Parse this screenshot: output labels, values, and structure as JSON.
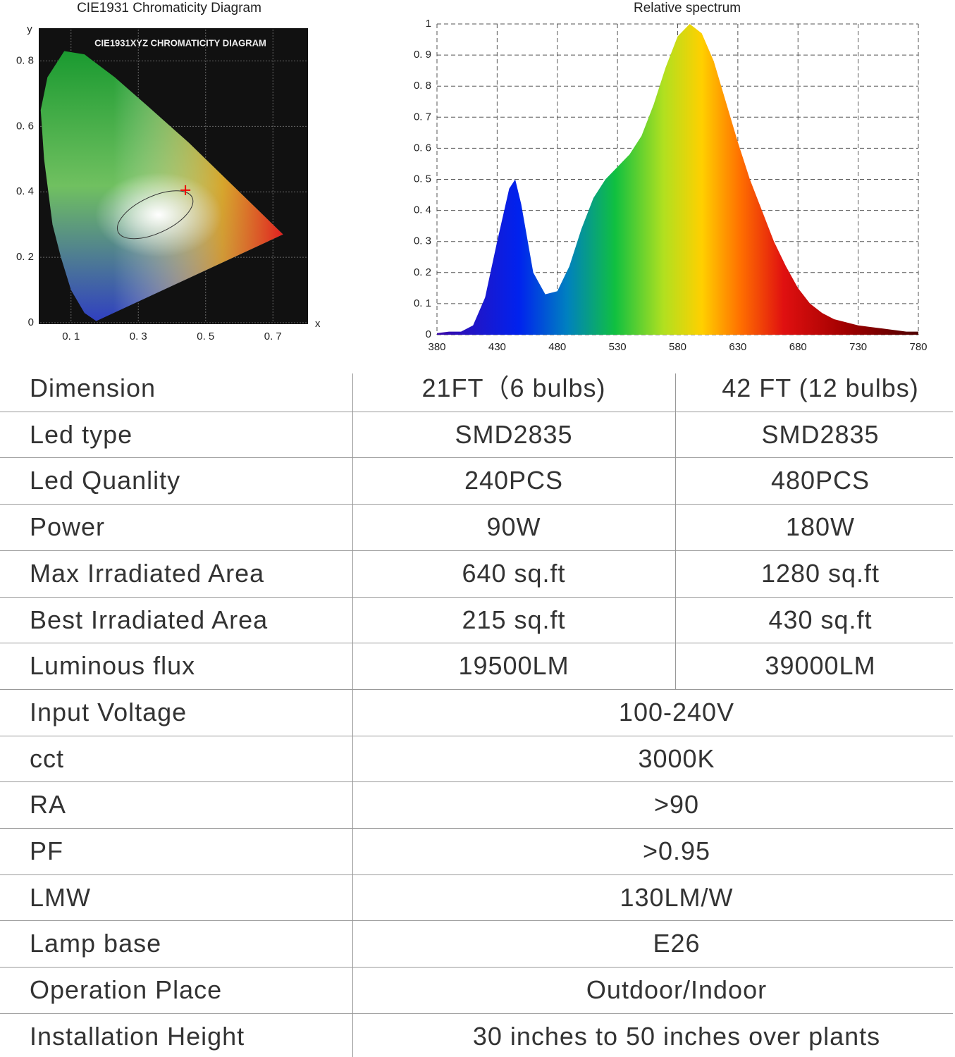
{
  "cie_chart": {
    "title": "CIE1931 Chromaticity Diagram",
    "inner_title": "CIE1931XYZ CHROMATICITY DIAGRAM",
    "x_label": "x",
    "y_label": "y",
    "xlim": [
      0,
      0.8
    ],
    "ylim": [
      0,
      0.9
    ],
    "xticks": [
      {
        "value": 0.1,
        "label": "0. 1"
      },
      {
        "value": 0.3,
        "label": "0. 3"
      },
      {
        "value": 0.5,
        "label": "0. 5"
      },
      {
        "value": 0.7,
        "label": "0. 7"
      }
    ],
    "yticks": [
      0,
      {
        "value": 0.2,
        "label": "0. 2"
      },
      {
        "value": 0.4,
        "label": "0. 4"
      },
      {
        "value": 0.6,
        "label": "0. 6"
      },
      {
        "value": 0.8,
        "label": "0. 8"
      }
    ]
  },
  "chart_data": {
    "type": "area",
    "title": "Relative spectrum",
    "x": [
      380,
      390,
      400,
      410,
      420,
      430,
      440,
      445,
      450,
      460,
      470,
      480,
      490,
      500,
      510,
      520,
      530,
      540,
      550,
      560,
      570,
      580,
      590,
      600,
      610,
      620,
      630,
      640,
      650,
      660,
      670,
      680,
      690,
      700,
      710,
      720,
      730,
      740,
      750,
      760,
      770,
      780
    ],
    "values": [
      0.005,
      0.01,
      0.01,
      0.03,
      0.12,
      0.3,
      0.47,
      0.5,
      0.42,
      0.2,
      0.13,
      0.14,
      0.22,
      0.34,
      0.44,
      0.5,
      0.54,
      0.58,
      0.64,
      0.74,
      0.86,
      0.96,
      1.0,
      0.97,
      0.88,
      0.75,
      0.62,
      0.5,
      0.4,
      0.3,
      0.22,
      0.15,
      0.1,
      0.07,
      0.05,
      0.04,
      0.03,
      0.025,
      0.02,
      0.015,
      0.01,
      0.01
    ],
    "xlim": [
      380,
      780
    ],
    "ylim": [
      0,
      1
    ],
    "xticks": [
      380,
      430,
      480,
      530,
      580,
      630,
      680,
      730,
      780
    ],
    "yticks": [
      0,
      {
        "value": 0.1,
        "label": "0. 1"
      },
      {
        "value": 0.2,
        "label": "0. 2"
      },
      {
        "value": 0.3,
        "label": "0. 3"
      },
      {
        "value": 0.4,
        "label": "0. 4"
      },
      {
        "value": 0.5,
        "label": "0. 5"
      },
      {
        "value": 0.6,
        "label": "0. 6"
      },
      {
        "value": 0.7,
        "label": "0. 7"
      },
      {
        "value": 0.8,
        "label": "0. 8"
      },
      {
        "value": 0.9,
        "label": "0. 9"
      },
      1
    ],
    "grid": true
  },
  "table": {
    "header": [
      "Dimension",
      "21FT（6 bulbs)",
      "42 FT (12 bulbs)"
    ],
    "rows": [
      [
        "Led type",
        "SMD2835",
        "SMD2835"
      ],
      [
        "Led Quanlity",
        "240PCS",
        "480PCS"
      ],
      [
        "Power",
        "90W",
        "180W"
      ],
      [
        "Max Irradiated Area",
        "640 sq.ft",
        "1280 sq.ft"
      ],
      [
        "Best Irradiated Area",
        "215 sq.ft",
        "430 sq.ft"
      ],
      [
        "Luminous flux",
        "19500LM",
        "39000LM"
      ],
      [
        "Input Voltage",
        "100-240V"
      ],
      [
        "cct",
        "3000K"
      ],
      [
        "RA",
        ">90"
      ],
      [
        "PF",
        ">0.95"
      ],
      [
        "LMW",
        "130LM/W"
      ],
      [
        "Lamp base",
        "E26"
      ],
      [
        "Operation Place",
        "Outdoor/Indoor"
      ],
      [
        "Installation Height",
        "30 inches to 50 inches over plants"
      ]
    ]
  }
}
